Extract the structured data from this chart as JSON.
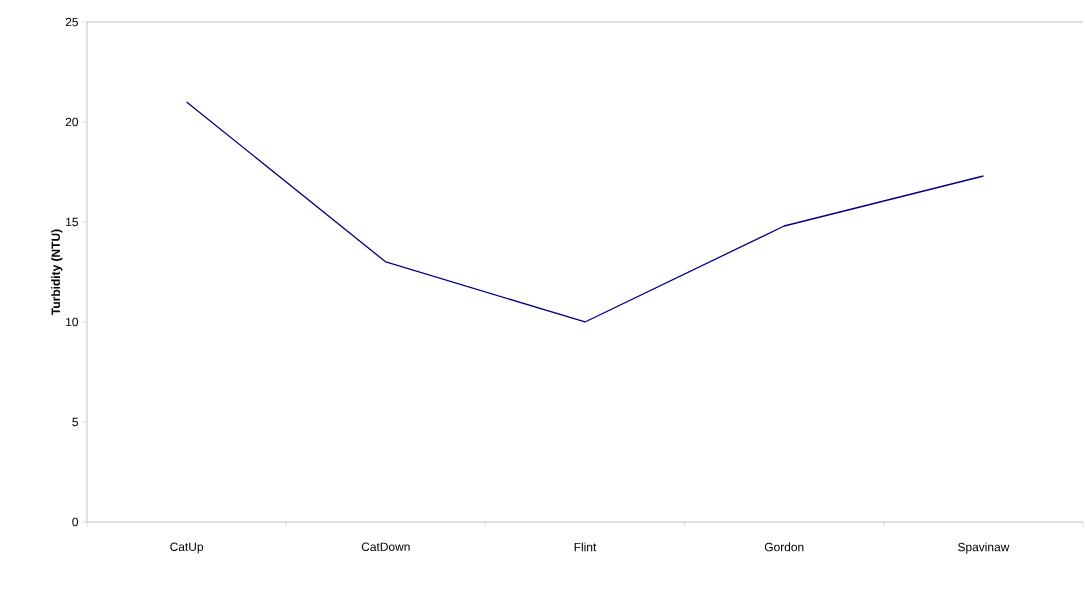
{
  "chart_data": {
    "type": "line",
    "ylabel": "**Turbidity (NTU)**",
    "categories": [
      "CatUp",
      "CatDown",
      "Flint",
      "Gordon",
      "Spavinaw"
    ],
    "series": [
      {
        "color": "#000080",
        "values": [
          21,
          13,
          10,
          14.8,
          17.3
        ]
      }
    ],
    "ylim": [
      0,
      25
    ],
    "yticks": [
      0,
      5,
      10,
      15,
      20,
      25
    ],
    "marker": "none",
    "line_style": "solid"
  }
}
